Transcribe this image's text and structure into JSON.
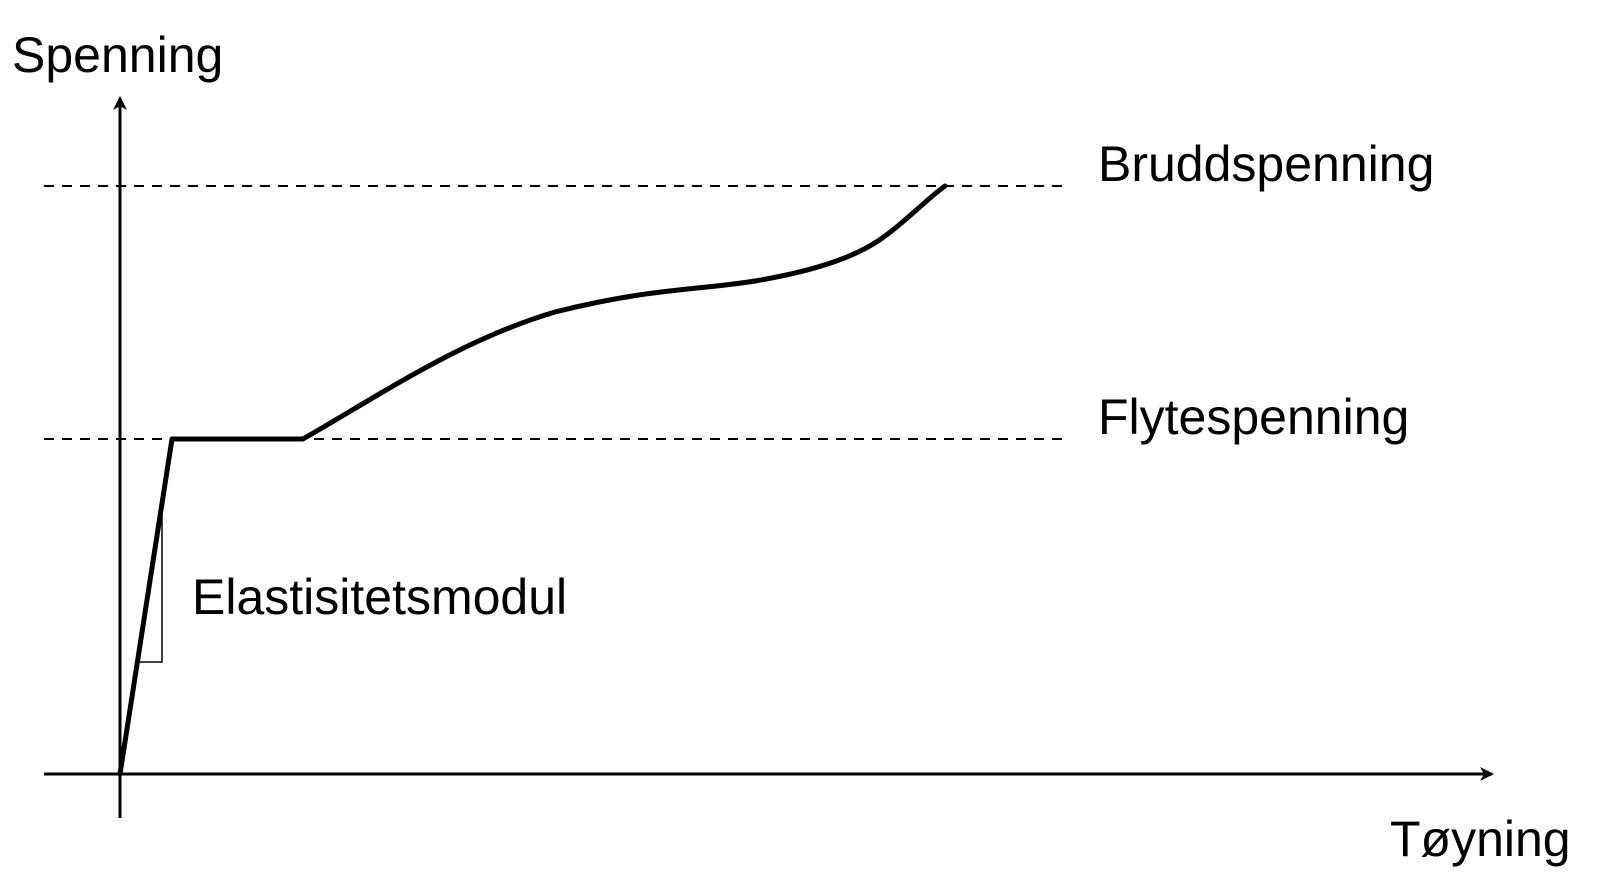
{
  "y_axis_label": "Spenning",
  "x_axis_label": "Tøyning",
  "levels": {
    "ultimate": "Bruddspenning",
    "yield": "Flytespenning"
  },
  "slope_label": "Elastisitetsmodul",
  "colors": {
    "line": "#000000",
    "background": "#ffffff"
  }
}
